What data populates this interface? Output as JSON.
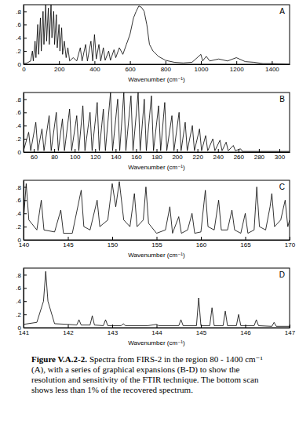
{
  "chart_data": [
    {
      "type": "line",
      "label": "A",
      "x_label": "Wavenumber (cm⁻¹)",
      "color": "#000000",
      "xlim": [
        0,
        1500
      ],
      "xticks": [
        0,
        200,
        400,
        600,
        800,
        1000,
        1200,
        1400
      ],
      "ylim": [
        0,
        0.9
      ],
      "yticks": [
        0,
        {
          "value": 0.2,
          "label": ".2"
        },
        {
          "value": 0.4,
          "label": ".4"
        },
        {
          "value": 0.6,
          "label": ".6"
        },
        {
          "value": 0.8,
          "label": ".8"
        }
      ],
      "x": [
        0,
        20,
        40,
        50,
        55,
        65,
        70,
        80,
        85,
        95,
        100,
        110,
        115,
        125,
        130,
        140,
        145,
        155,
        160,
        170,
        175,
        185,
        190,
        200,
        205,
        215,
        220,
        230,
        240,
        250,
        260,
        280,
        300,
        320,
        330,
        350,
        360,
        380,
        390,
        400,
        410,
        425,
        435,
        450,
        460,
        480,
        490,
        510,
        520,
        540,
        560,
        580,
        600,
        620,
        635,
        650,
        665,
        680,
        695,
        710,
        730,
        760,
        800,
        850,
        900,
        950,
        1000,
        1010,
        1030,
        1050,
        1100,
        1150,
        1200,
        1250,
        1300,
        1350,
        1400,
        1500
      ],
      "values": [
        0.01,
        0.02,
        0.05,
        0.2,
        0.05,
        0.35,
        0.1,
        0.6,
        0.15,
        0.7,
        0.2,
        0.8,
        0.3,
        0.9,
        0.35,
        0.85,
        0.3,
        0.9,
        0.4,
        0.8,
        0.3,
        0.75,
        0.25,
        0.6,
        0.2,
        0.55,
        0.15,
        0.35,
        0.1,
        0.25,
        0.05,
        0.1,
        0.05,
        0.25,
        0.05,
        0.3,
        0.05,
        0.35,
        0.05,
        0.45,
        0.08,
        0.3,
        0.05,
        0.25,
        0.06,
        0.2,
        0.06,
        0.22,
        0.1,
        0.25,
        0.15,
        0.3,
        0.45,
        0.7,
        0.8,
        0.88,
        0.86,
        0.8,
        0.6,
        0.3,
        0.2,
        0.12,
        0.06,
        0.03,
        0.02,
        0.03,
        0.15,
        0.05,
        0.12,
        0.05,
        0.08,
        0.05,
        0.1,
        0.04,
        0.03,
        0.01,
        0.01,
        0
      ]
    },
    {
      "type": "line",
      "label": "B",
      "x_label": "Wavenumber (cm⁻¹)",
      "color": "#000000",
      "xlim": [
        50,
        310
      ],
      "xticks": [
        60,
        80,
        100,
        120,
        140,
        160,
        180,
        200,
        220,
        240,
        260,
        280,
        300
      ],
      "ylim": [
        0,
        0.9
      ],
      "yticks": [
        0,
        {
          "value": 0.2,
          "label": ".2"
        },
        {
          "value": 0.4,
          "label": ".4"
        },
        {
          "value": 0.6,
          "label": ".6"
        },
        {
          "value": 0.8,
          "label": ".8"
        }
      ],
      "x": [
        50,
        55,
        57,
        62,
        64,
        68,
        70,
        75,
        77,
        82,
        84,
        88,
        90,
        95,
        97,
        102,
        104,
        108,
        110,
        115,
        117,
        122,
        124,
        128,
        130,
        135,
        137,
        142,
        144,
        148,
        150,
        155,
        157,
        162,
        164,
        168,
        170,
        175,
        177,
        182,
        184,
        188,
        190,
        195,
        197,
        202,
        204,
        208,
        210,
        215,
        217,
        222,
        224,
        228,
        230,
        235,
        237,
        242,
        244,
        248,
        250,
        255,
        257,
        262,
        264,
        280,
        310
      ],
      "values": [
        0.02,
        0.3,
        0.02,
        0.45,
        0.02,
        0.35,
        0.02,
        0.55,
        0.02,
        0.6,
        0.02,
        0.5,
        0.02,
        0.65,
        0.02,
        0.55,
        0.02,
        0.7,
        0.02,
        0.6,
        0.02,
        0.75,
        0.02,
        0.65,
        0.02,
        0.9,
        0.02,
        0.8,
        0.02,
        0.9,
        0.02,
        0.85,
        0.02,
        0.9,
        0.02,
        0.8,
        0.02,
        0.85,
        0.02,
        0.7,
        0.02,
        0.75,
        0.02,
        0.55,
        0.02,
        0.6,
        0.02,
        0.45,
        0.02,
        0.4,
        0.02,
        0.35,
        0.02,
        0.25,
        0.02,
        0.2,
        0.02,
        0.18,
        0.02,
        0.15,
        0.02,
        0.1,
        0.02,
        0.05,
        0.01,
        0.01,
        0.01
      ]
    },
    {
      "type": "line",
      "label": "C",
      "x_label": "Wavenumber (cm⁻¹)",
      "color": "#000000",
      "xlim": [
        140,
        170
      ],
      "xticks": [
        140,
        145,
        150,
        155,
        160,
        165,
        170
      ],
      "ylim": [
        0,
        0.9
      ],
      "yticks": [
        0,
        {
          "value": 0.2,
          "label": ".2"
        },
        {
          "value": 0.4,
          "label": ".4"
        },
        {
          "value": 0.6,
          "label": ".6"
        },
        {
          "value": 0.8,
          "label": ".8"
        }
      ],
      "x": [
        140,
        140.3,
        140.6,
        141.5,
        142,
        142.3,
        143.5,
        144.2,
        144.5,
        145.5,
        146.5,
        146.8,
        147.5,
        148.3,
        148.6,
        149.5,
        150,
        150.4,
        150.8,
        151.3,
        152,
        152.5,
        152.8,
        153.5,
        153.8,
        154.1,
        155,
        156,
        156.5,
        156.8,
        157.5,
        157.8,
        158.5,
        159,
        159.3,
        160,
        160.5,
        160.8,
        161.5,
        162,
        162.3,
        163,
        163.5,
        163.8,
        164.5,
        165,
        165.3,
        166,
        166.3,
        166.6,
        167.3,
        167.8,
        168,
        168.3,
        169,
        169.5,
        169.8,
        170
      ],
      "values": [
        0.3,
        0.85,
        0.3,
        0.15,
        0.6,
        0.15,
        0.12,
        0.45,
        0.1,
        0.1,
        0.75,
        0.2,
        0.15,
        0.6,
        0.2,
        0.3,
        0.85,
        0.5,
        0.88,
        0.3,
        0.2,
        0.7,
        0.2,
        0.3,
        0.8,
        0.25,
        0.1,
        0.15,
        0.5,
        0.1,
        0.35,
        0.1,
        0.15,
        0.4,
        0.1,
        0.12,
        0.75,
        0.2,
        0.15,
        0.6,
        0.15,
        0.15,
        0.45,
        0.15,
        0.1,
        0.4,
        0.1,
        0.15,
        0.8,
        0.2,
        0.15,
        0.5,
        0.7,
        0.2,
        0.3,
        0.6,
        0.2,
        0.3
      ]
    },
    {
      "type": "line",
      "label": "D",
      "x_label": "Wavenumber (cm⁻¹)",
      "color": "#000000",
      "xlim": [
        141,
        147
      ],
      "xticks": [
        141,
        142,
        143,
        144,
        145,
        146,
        147
      ],
      "ylim": [
        0,
        0.9
      ],
      "yticks": [
        0,
        {
          "value": 0.2,
          "label": ".2"
        },
        {
          "value": 0.4,
          "label": ".4"
        },
        {
          "value": 0.6,
          "label": ".6"
        },
        {
          "value": 0.8,
          "label": ".8"
        }
      ],
      "x": [
        141,
        141.3,
        141.45,
        141.5,
        141.55,
        141.7,
        142,
        142.2,
        142.25,
        142.3,
        142.5,
        142.55,
        142.6,
        142.8,
        142.85,
        142.9,
        143.2,
        143.25,
        143.3,
        143.8,
        144,
        144.05,
        144.5,
        144.55,
        144.6,
        144.9,
        144.95,
        145,
        145.2,
        145.25,
        145.3,
        145.5,
        145.55,
        145.6,
        145.8,
        145.85,
        145.9,
        146.2,
        146.25,
        146.3,
        146.6,
        146.65,
        146.7,
        147
      ],
      "values": [
        0.05,
        0.08,
        0.4,
        0.85,
        0.4,
        0.06,
        0.05,
        0.04,
        0.12,
        0.04,
        0.04,
        0.18,
        0.04,
        0.03,
        0.12,
        0.03,
        0.03,
        0.06,
        0.03,
        0.03,
        0.05,
        0.03,
        0.03,
        0.12,
        0.03,
        0.03,
        0.45,
        0.03,
        0.03,
        0.3,
        0.03,
        0.03,
        0.25,
        0.03,
        0.03,
        0.2,
        0.03,
        0.03,
        0.12,
        0.03,
        0.02,
        0.08,
        0.02,
        0.02
      ]
    }
  ],
  "caption": {
    "label": "Figure V.A.2-2.",
    "text": "Spectra from FIRS-2 in the region 80 - 1400 cm⁻¹ (A), with a series of graphical expansions (B-D) to show the resolution and sensitivity of the FTIR technique. The bottom scan shows less than 1% of the recovered spectrum."
  }
}
